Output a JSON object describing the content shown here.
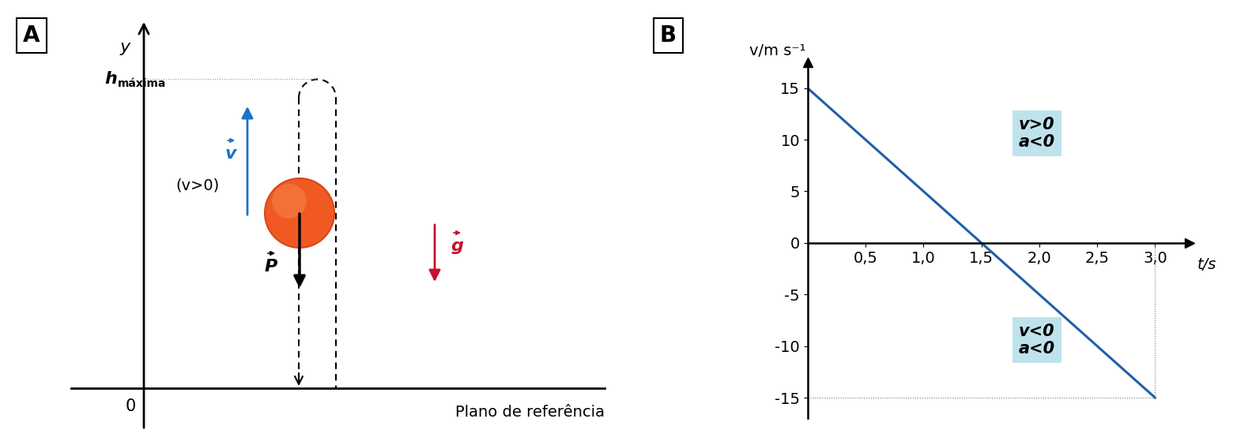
{
  "diagram": {
    "panel_label": "A",
    "y_axis_label": "y",
    "origin_label": "0",
    "reference_plane": "Plano de referência",
    "max_height": {
      "symbol": "h",
      "subscript": "máxima"
    },
    "velocity": {
      "symbol": "v",
      "condition": "(v>0)"
    },
    "weight": {
      "symbol": "P"
    },
    "gravity": {
      "symbol": "g"
    }
  },
  "chart_data": {
    "panel_label": "B",
    "type": "line",
    "x": [
      0,
      3.0
    ],
    "values": [
      15,
      -15
    ],
    "color": "#1f5fa8",
    "x_label": "t/s",
    "y_label": "v/m s⁻¹",
    "xlim": [
      0,
      3.3
    ],
    "ylim": [
      -17,
      17.5
    ],
    "xticks": [
      {
        "value": 0.5,
        "label": "0,5"
      },
      {
        "value": 1.0,
        "label": "1,0"
      },
      {
        "value": 1.5,
        "label": "1,5"
      },
      {
        "value": 2.0,
        "label": "2,0"
      },
      {
        "value": 2.5,
        "label": "2,5"
      },
      {
        "value": 3.0,
        "label": "3,0"
      }
    ],
    "yticks": [
      -15,
      -10,
      -5,
      0,
      5,
      10,
      15
    ],
    "grid": false,
    "annotations": [
      "v>0\na<0",
      "v<0\na<0"
    ]
  }
}
